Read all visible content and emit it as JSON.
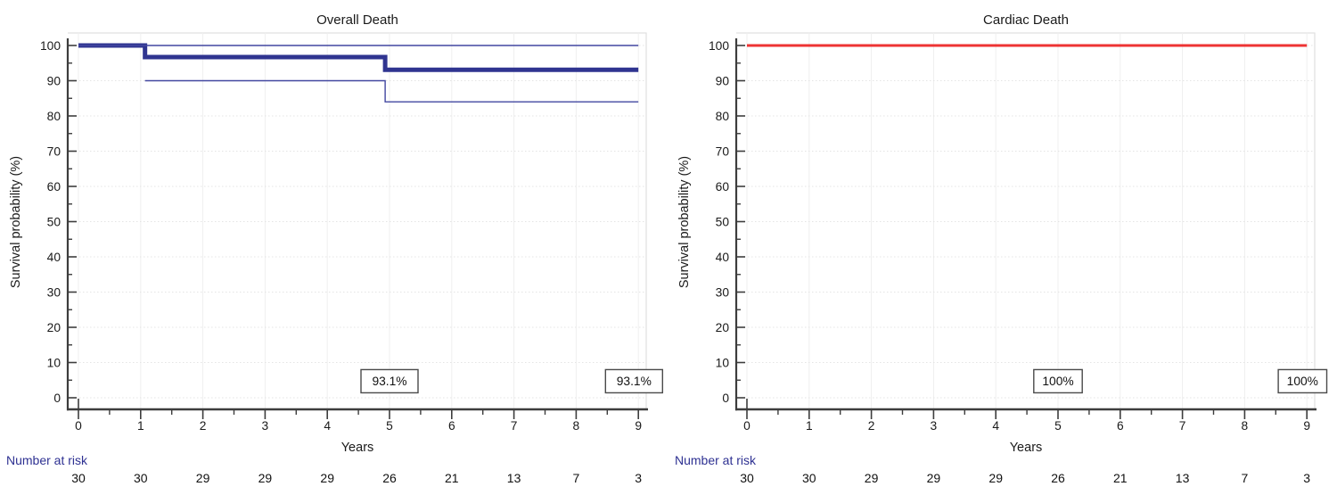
{
  "chart_data": [
    {
      "type": "line",
      "subtype": "kaplan-meier-step",
      "title": "Overall Death",
      "xlabel": "Years",
      "ylabel": "Survival probability (%)",
      "xlim": [
        0,
        9
      ],
      "ylim": [
        0,
        100
      ],
      "x_ticks": [
        0,
        1,
        2,
        3,
        4,
        5,
        6,
        7,
        8,
        9
      ],
      "y_ticks": [
        0,
        10,
        20,
        30,
        40,
        50,
        60,
        70,
        80,
        90,
        100
      ],
      "grid": "on",
      "series": [
        {
          "name": "survival-estimate",
          "color": "#2f3490",
          "width": 5,
          "points": [
            [
              0,
              100
            ],
            [
              1.07,
              100
            ],
            [
              1.07,
              96.7
            ],
            [
              4.93,
              96.7
            ],
            [
              4.93,
              93.1
            ],
            [
              9,
              93.1
            ]
          ]
        },
        {
          "name": "ci-upper",
          "color": "#4247a0",
          "width": 1.4,
          "points": [
            [
              0,
              100
            ],
            [
              9,
              100
            ]
          ]
        },
        {
          "name": "ci-lower",
          "color": "#4247a0",
          "width": 1.4,
          "points": [
            [
              1.07,
              90
            ],
            [
              4.93,
              90
            ],
            [
              4.93,
              84
            ],
            [
              9,
              84
            ]
          ]
        }
      ],
      "annotations": [
        {
          "x": 5,
          "y": 4.7,
          "label": "93.1%"
        },
        {
          "x": 8.93,
          "y": 4.7,
          "label": "93.1%"
        }
      ],
      "risk_table": {
        "label": "Number at risk",
        "years": [
          0,
          1,
          2,
          3,
          4,
          5,
          6,
          7,
          8,
          9
        ],
        "counts": [
          30,
          30,
          29,
          29,
          29,
          26,
          21,
          13,
          7,
          3
        ]
      }
    },
    {
      "type": "line",
      "subtype": "kaplan-meier-step",
      "title": "Cardiac Death",
      "xlabel": "Years",
      "ylabel": "Survival probability (%)",
      "xlim": [
        0,
        9
      ],
      "ylim": [
        0,
        100
      ],
      "x_ticks": [
        0,
        1,
        2,
        3,
        4,
        5,
        6,
        7,
        8,
        9
      ],
      "y_ticks": [
        0,
        10,
        20,
        30,
        40,
        50,
        60,
        70,
        80,
        90,
        100
      ],
      "grid": "on",
      "series": [
        {
          "name": "survival-estimate",
          "color": "#ee3333",
          "width": 3,
          "points": [
            [
              0,
              100
            ],
            [
              9,
              100
            ]
          ]
        }
      ],
      "annotations": [
        {
          "x": 5,
          "y": 4.7,
          "label": "100%"
        },
        {
          "x": 8.93,
          "y": 4.7,
          "label": "100%"
        }
      ],
      "risk_table": {
        "label": "Number at risk",
        "years": [
          0,
          1,
          2,
          3,
          4,
          5,
          6,
          7,
          8,
          9
        ],
        "counts": [
          30,
          30,
          29,
          29,
          29,
          26,
          21,
          13,
          7,
          3
        ]
      }
    }
  ],
  "colors": {
    "axis": "#3d3d3d",
    "tick_label": "#1a1a1a",
    "grid_vertical": "#efefef",
    "grid_horizontal": "#e4e4e4",
    "frame": "#e0e0e0",
    "risk_label": "#2e3192",
    "risk_counts": "#111111",
    "annotation_border": "#4a4a4a",
    "annotation_bg": "#ffffff"
  }
}
